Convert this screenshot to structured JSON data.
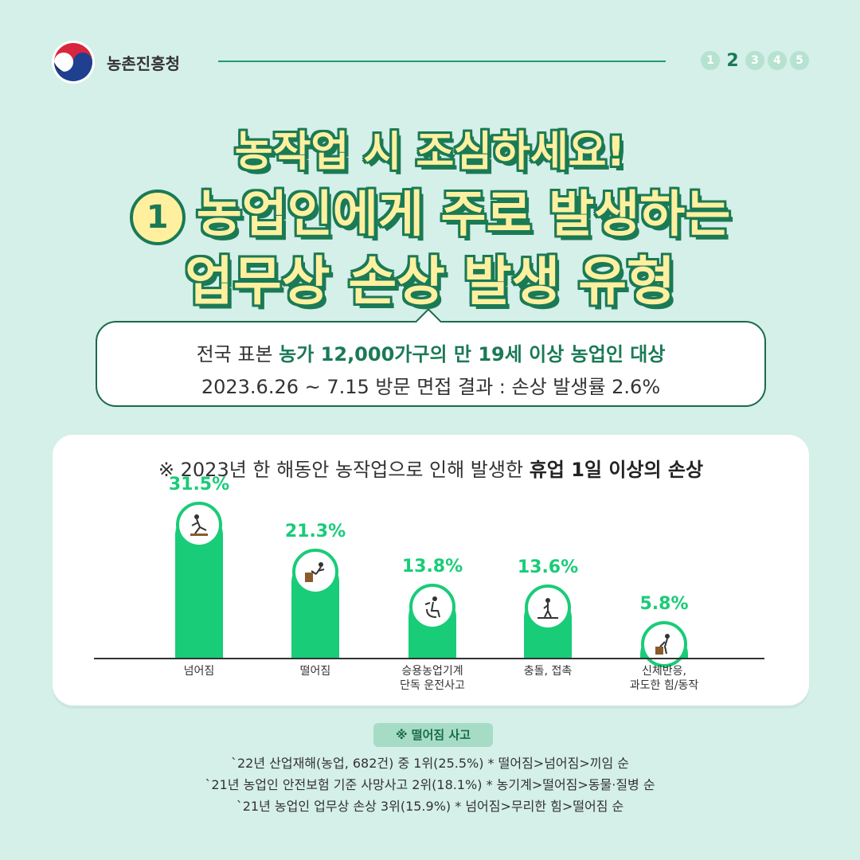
{
  "header": {
    "org_name": "농촌진흥청",
    "pages": [
      "1",
      "2",
      "3",
      "4",
      "5"
    ],
    "active_page": 2
  },
  "title": {
    "line1": "농작업 시 조심하세요!",
    "number": "1",
    "line2": "농업인에게 주로 발생하는",
    "line3": "업무상 손상 발생 유형"
  },
  "survey": {
    "prefix": "전국 표본 ",
    "highlight": "농가 12,000가구의 만 19세 이상 농업인 대상",
    "line2": "2023.6.26 ~ 7.15 방문 면접 결과 : 손상 발생률 2.6%"
  },
  "chart_data": {
    "type": "bar",
    "title_prefix": "※ 2023년 한 해동안 농작업으로 인해 발생한 ",
    "title_bold": "휴업 1일 이상의 손상",
    "categories": [
      "넘어짐",
      "떨어짐",
      "승용농업기계\n단독 운전사고",
      "충돌, 접촉",
      "신체반응,\n과도한 힘/동작"
    ],
    "values": [
      31.5,
      21.3,
      13.8,
      13.6,
      5.8
    ],
    "labels": [
      "31.5%",
      "21.3%",
      "13.8%",
      "13.6%",
      "5.8%"
    ],
    "icons": [
      "slipping-person-icon",
      "falling-person-icon",
      "tractor-driver-icon",
      "collision-person-icon",
      "lifting-person-icon"
    ],
    "ylim": [
      0,
      35
    ],
    "color": "#19cc78"
  },
  "notes": {
    "badge": "※ 떨어짐 사고",
    "lines": [
      "`22년 산업재해(농업, 682건) 중 1위(25.5%) * 떨어짐>넘어짐>끼임 순",
      "`21년 농업인 안전보험 기준 사망사고 2위(18.1%) * 농기계>떨어짐>동물·질병 순",
      "`21년 농업인 업무상 손상 3위(15.9%) * 넘어짐>무리한 힘>떨어짐 순"
    ]
  }
}
